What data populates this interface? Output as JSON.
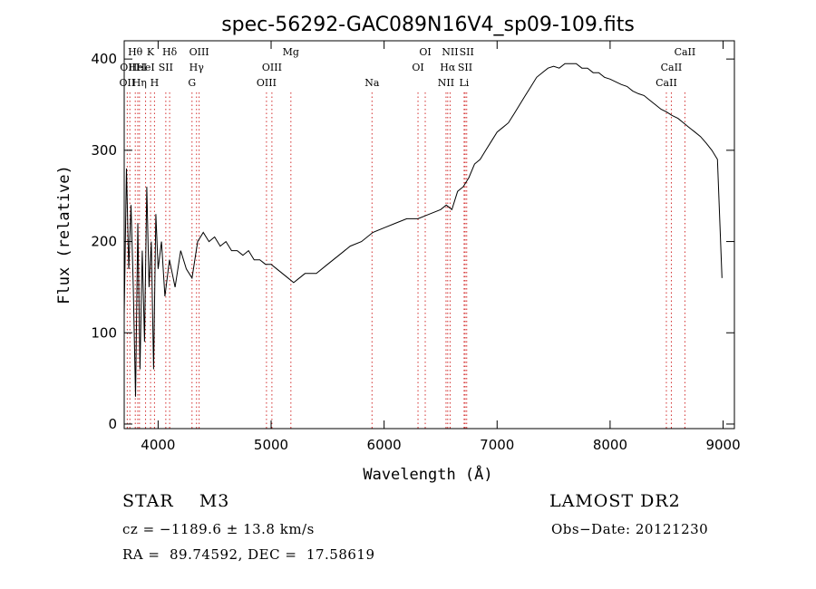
{
  "chart_data": {
    "type": "line",
    "title": "spec-56292-GAC089N16V4_sp09-109.fits",
    "xlabel": "Wavelength (Å)",
    "ylabel": "Flux (relative)",
    "xlim": [
      3700,
      9100
    ],
    "ylim": [
      -5,
      420
    ],
    "x_ticks": [
      4000,
      5000,
      6000,
      7000,
      8000,
      9000
    ],
    "y_ticks": [
      0,
      100,
      200,
      300,
      400
    ],
    "grid": false,
    "line_color": "#000000",
    "marker_color": "#d32f2f",
    "series": [
      {
        "x": [
          3700,
          3720,
          3740,
          3760,
          3780,
          3800,
          3820,
          3840,
          3860,
          3880,
          3900,
          3920,
          3940,
          3960,
          3980,
          4000,
          4030,
          4060,
          4100,
          4150,
          4200,
          4250,
          4300,
          4350,
          4400,
          4450,
          4500,
          4550,
          4600,
          4650,
          4700,
          4750,
          4800,
          4850,
          4900,
          4950,
          5000,
          5050,
          5100,
          5150,
          5200,
          5250,
          5300,
          5400,
          5500,
          5600,
          5700,
          5800,
          5900,
          6000,
          6100,
          6200,
          6300,
          6400,
          6500,
          6550,
          6600,
          6650,
          6700,
          6750,
          6800,
          6850,
          6900,
          6950,
          7000,
          7050,
          7100,
          7150,
          7200,
          7250,
          7300,
          7350,
          7400,
          7450,
          7500,
          7550,
          7600,
          7650,
          7700,
          7750,
          7800,
          7850,
          7900,
          7950,
          8000,
          8050,
          8100,
          8150,
          8200,
          8250,
          8300,
          8350,
          8400,
          8450,
          8500,
          8550,
          8600,
          8650,
          8700,
          8750,
          8800,
          8850,
          8900,
          8950,
          8990
        ],
        "values": [
          120,
          280,
          170,
          240,
          150,
          30,
          220,
          60,
          190,
          90,
          260,
          150,
          200,
          60,
          230,
          170,
          200,
          140,
          180,
          150,
          190,
          170,
          160,
          200,
          210,
          200,
          205,
          195,
          200,
          190,
          190,
          185,
          190,
          180,
          180,
          175,
          175,
          170,
          165,
          160,
          155,
          160,
          165,
          165,
          175,
          185,
          195,
          200,
          210,
          215,
          220,
          225,
          225,
          230,
          235,
          240,
          235,
          255,
          260,
          270,
          285,
          290,
          300,
          310,
          320,
          325,
          330,
          340,
          350,
          360,
          370,
          380,
          385,
          390,
          392,
          390,
          395,
          395,
          395,
          390,
          390,
          385,
          385,
          380,
          378,
          375,
          372,
          370,
          365,
          362,
          360,
          355,
          350,
          345,
          342,
          338,
          335,
          330,
          325,
          320,
          315,
          308,
          300,
          290,
          160
        ]
      }
    ],
    "line_markers": [
      {
        "wavelength": 3727,
        "label": "OII",
        "row": 2
      },
      {
        "wavelength": 3750,
        "label": "OIII",
        "row": 1
      },
      {
        "wavelength": 3798,
        "label": "Hθ",
        "row": 0
      },
      {
        "wavelength": 3820,
        "label": "HeI",
        "row": 1
      },
      {
        "wavelength": 3835,
        "label": "Hη",
        "row": 2
      },
      {
        "wavelength": 3889,
        "label": "HeI",
        "row": 1
      },
      {
        "wavelength": 3933,
        "label": "K",
        "row": 0
      },
      {
        "wavelength": 3968,
        "label": "H",
        "row": 2
      },
      {
        "wavelength": 4068,
        "label": "SII",
        "row": 1
      },
      {
        "wavelength": 4102,
        "label": "Hδ",
        "row": 0
      },
      {
        "wavelength": 4300,
        "label": "G",
        "row": 2
      },
      {
        "wavelength": 4340,
        "label": "Hγ",
        "row": 1
      },
      {
        "wavelength": 4363,
        "label": "OIII",
        "row": 0
      },
      {
        "wavelength": 4959,
        "label": "OIII",
        "row": 2
      },
      {
        "wavelength": 5007,
        "label": "OIII",
        "row": 1
      },
      {
        "wavelength": 5175,
        "label": "Mg",
        "row": 0
      },
      {
        "wavelength": 5893,
        "label": "Na",
        "row": 2
      },
      {
        "wavelength": 6300,
        "label": "OI",
        "row": 1
      },
      {
        "wavelength": 6364,
        "label": "OI",
        "row": 0
      },
      {
        "wavelength": 6548,
        "label": "NII",
        "row": 2
      },
      {
        "wavelength": 6563,
        "label": "Hα",
        "row": 1
      },
      {
        "wavelength": 6584,
        "label": "NII",
        "row": 0
      },
      {
        "wavelength": 6708,
        "label": "Li",
        "row": 2
      },
      {
        "wavelength": 6717,
        "label": "SII",
        "row": 1
      },
      {
        "wavelength": 6731,
        "label": "SII",
        "row": 0
      },
      {
        "wavelength": 8498,
        "label": "CaII",
        "row": 2
      },
      {
        "wavelength": 8542,
        "label": "CaII",
        "row": 1
      },
      {
        "wavelength": 8662,
        "label": "CaII",
        "row": 0
      }
    ]
  },
  "info": {
    "object_class": "STAR    M3",
    "survey": "LAMOST DR2",
    "redshift": "cz = −1189.6 ± 13.8 km/s",
    "obs_date": "Obs−Date: 20121230",
    "coords": "RA =  89.74592, DEC =  17.58619"
  }
}
